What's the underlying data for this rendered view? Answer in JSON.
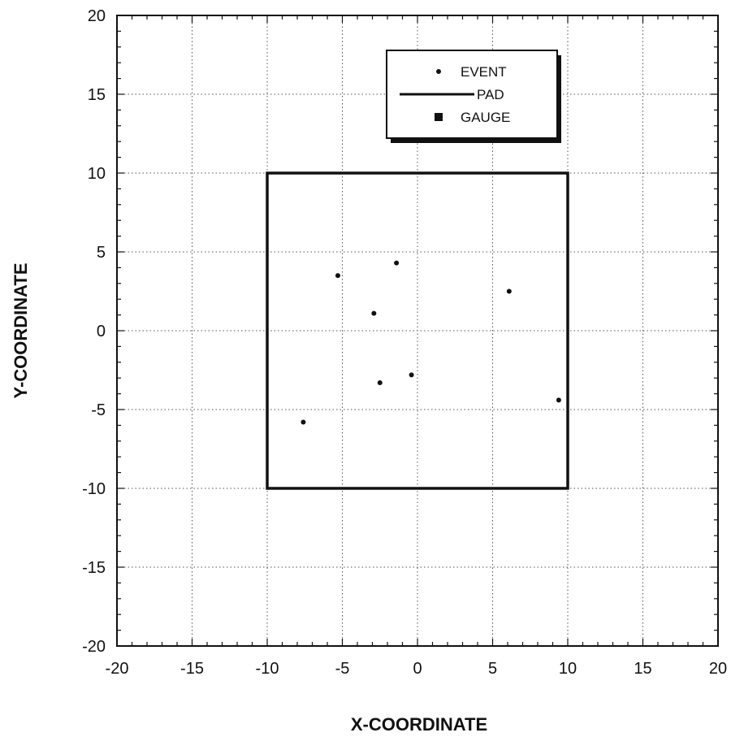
{
  "chart_data": {
    "type": "scatter",
    "xlabel": "X-COORDINATE",
    "ylabel": "Y-COORDINATE",
    "xlim": [
      -20,
      20
    ],
    "ylim": [
      -20,
      20
    ],
    "x_ticks": [
      -20,
      -15,
      -10,
      -5,
      0,
      5,
      10,
      15,
      20
    ],
    "y_ticks": [
      -20,
      -15,
      -10,
      -5,
      0,
      5,
      10,
      15,
      20
    ],
    "minor_tick_step": 1,
    "grid": true,
    "legend_position": "top-right",
    "legend": [
      "EVENT",
      "PAD",
      "GAUGE"
    ],
    "series": [
      {
        "name": "EVENT",
        "marker": "dot",
        "points": [
          {
            "x": -5.3,
            "y": 3.5
          },
          {
            "x": -1.4,
            "y": 4.3
          },
          {
            "x": -2.9,
            "y": 1.1
          },
          {
            "x": 6.1,
            "y": 2.5
          },
          {
            "x": -2.5,
            "y": -3.3
          },
          {
            "x": -0.4,
            "y": -2.8
          },
          {
            "x": 9.4,
            "y": -4.4
          },
          {
            "x": -7.6,
            "y": -5.8
          }
        ]
      },
      {
        "name": "PAD",
        "marker": "line",
        "polygon": [
          {
            "x": -10,
            "y": 10
          },
          {
            "x": 10,
            "y": 10
          },
          {
            "x": 10,
            "y": -10
          },
          {
            "x": -10,
            "y": -10
          }
        ]
      },
      {
        "name": "GAUGE",
        "marker": "square",
        "points": []
      }
    ],
    "colors": {
      "ink": "#111111",
      "grid": "#555555",
      "legend_shadow": "#111111"
    }
  }
}
